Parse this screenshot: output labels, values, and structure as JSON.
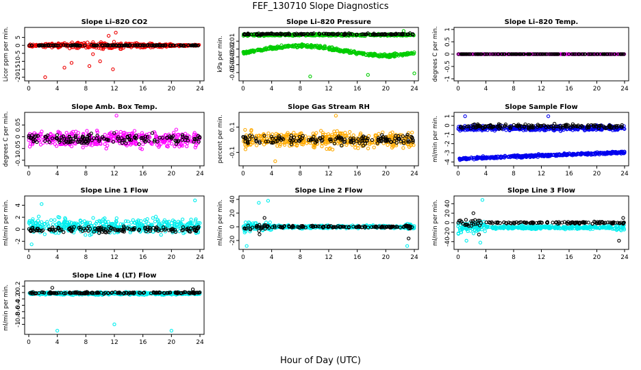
{
  "figure": {
    "title": "FEF_130710  Slope Diagnostics",
    "xlabel": "Hour of Day (UTC)"
  },
  "chart_data": [
    {
      "type": "scatter",
      "title": "Slope Li–820 CO2",
      "ylabel": "Licor ppm per min.",
      "xlim": [
        0,
        24
      ],
      "xticks": [
        "0",
        "4",
        "8",
        "12",
        "16",
        "20",
        "24"
      ],
      "ylim": [
        -21,
        10
      ],
      "yticks": [
        -20,
        -15,
        -10,
        -5,
        0,
        5
      ],
      "grid": false,
      "series": [
        {
          "color": "#ee0000",
          "center": 0,
          "spread": 2.2,
          "mode": "cone",
          "out": [
            [
              2.3,
              -20
            ],
            [
              5,
              -14
            ],
            [
              6,
              -11
            ],
            [
              8.5,
              -13
            ],
            [
              9,
              -5.5
            ],
            [
              10,
              -10
            ],
            [
              11.2,
              6
            ],
            [
              11.8,
              -15
            ],
            [
              12.2,
              8
            ]
          ]
        },
        {
          "color": "#000000",
          "center": 0,
          "spread": 0.4,
          "mode": "flat",
          "out": []
        }
      ]
    },
    {
      "type": "scatter",
      "title": "Slope Li–820 Pressure",
      "ylabel": "kPa per min.",
      "xlim": [
        0,
        24
      ],
      "xticks": [
        "0",
        "4",
        "8",
        "12",
        "16",
        "20",
        "24"
      ],
      "ylim": [
        -0.058,
        0.005
      ],
      "yticks": [
        -0.05,
        -0.04,
        -0.03,
        -0.02,
        -0.01
      ],
      "grid": false,
      "series": [
        {
          "color": "#00cc00",
          "center": -0.002,
          "spread": 0.002,
          "mode": "flat",
          "out": [
            [
              9.4,
              -0.055
            ],
            [
              17.5,
              -0.053
            ],
            [
              24,
              -0.051
            ],
            [
              22.5,
              0.003
            ]
          ]
        },
        {
          "color": "#00cc00",
          "center": -0.022,
          "spread": 0.003,
          "mode": "band2",
          "out": []
        },
        {
          "color": "#000000",
          "center": -0.001,
          "spread": 0.0015,
          "mode": "flat",
          "out": []
        }
      ]
    },
    {
      "type": "scatter",
      "title": "Slope Li–820 Temp.",
      "ylabel": "degrees C per min.",
      "xlim": [
        0,
        24
      ],
      "xticks": [
        "0",
        "4",
        "8",
        "12",
        "16",
        "20",
        "24"
      ],
      "ylim": [
        -1,
        1
      ],
      "yticks": [
        -1.0,
        -0.5,
        0.0,
        0.5,
        1.0
      ],
      "grid": false,
      "series": [
        {
          "color": "#ff00ff",
          "center": 0,
          "spread": 0.0,
          "mode": "flat",
          "out": []
        },
        {
          "color": "#000000",
          "center": 0,
          "spread": 0.0,
          "mode": "flat",
          "out": []
        }
      ]
    },
    {
      "type": "scatter",
      "title": "Slope Amb. Box Temp.",
      "ylabel": "degrees C per min.",
      "xlim": [
        0,
        24
      ],
      "xticks": [
        "0",
        "4",
        "8",
        "12",
        "16",
        "20",
        "24"
      ],
      "ylim": [
        -0.115,
        0.095
      ],
      "yticks": [
        -0.1,
        -0.05,
        0.0,
        0.05
      ],
      "grid": false,
      "series": [
        {
          "color": "#ff00ff",
          "center": -0.01,
          "spread": 0.05,
          "mode": "flat",
          "out": [
            [
              12.3,
              0.09
            ]
          ]
        },
        {
          "color": "#000000",
          "center": -0.01,
          "spread": 0.03,
          "mode": "flat",
          "out": []
        }
      ]
    },
    {
      "type": "scatter",
      "title": "Slope Gas Stream RH",
      "ylabel": "percent per min.",
      "xlim": [
        0,
        24
      ],
      "xticks": [
        "0",
        "4",
        "8",
        "12",
        "16",
        "20",
        "24"
      ],
      "ylim": [
        -0.19,
        0.2
      ],
      "yticks": [
        -0.1,
        0.1
      ],
      "grid": false,
      "series": [
        {
          "color": "#ffaa00",
          "center": 0,
          "spread": 0.09,
          "mode": "flat",
          "out": [
            [
              13,
              0.19
            ],
            [
              4.5,
              -0.17
            ]
          ]
        },
        {
          "color": "#000000",
          "center": 0,
          "spread": 0.05,
          "mode": "flat",
          "out": []
        }
      ]
    },
    {
      "type": "scatter",
      "title": "Slope Sample Flow",
      "ylabel": "ml/min per min.",
      "xlim": [
        0,
        24
      ],
      "xticks": [
        "0",
        "4",
        "8",
        "12",
        "16",
        "20",
        "24"
      ],
      "ylim": [
        -4.2,
        1.2
      ],
      "yticks": [
        -4,
        -3,
        -2,
        -1,
        0,
        1
      ],
      "grid": false,
      "series": [
        {
          "color": "#0000ee",
          "center": -0.3,
          "spread": 0.4,
          "mode": "flat",
          "out": [
            [
              1,
              1
            ],
            [
              13,
              1
            ]
          ]
        },
        {
          "color": "#0000ee",
          "center": -3.3,
          "spread": 0.2,
          "mode": "lower",
          "out": []
        },
        {
          "color": "#000000",
          "center": -0.1,
          "spread": 0.35,
          "mode": "flat",
          "out": []
        }
      ]
    },
    {
      "type": "scatter",
      "title": "Slope Line 1 Flow",
      "ylabel": "ml/min per min.",
      "xlim": [
        0,
        24
      ],
      "xticks": [
        "0",
        "4",
        "8",
        "12",
        "16",
        "20",
        "24"
      ],
      "ylim": [
        -3,
        5.2
      ],
      "yticks": [
        -2,
        0,
        2,
        4
      ],
      "grid": false,
      "series": [
        {
          "color": "#00eeee",
          "center": 0.5,
          "spread": 1.8,
          "mode": "flat",
          "out": [
            [
              1.8,
              4.2
            ],
            [
              23.3,
              4.8
            ],
            [
              0.4,
              -2.5
            ]
          ]
        },
        {
          "color": "#000000",
          "center": 0,
          "spread": 0.7,
          "mode": "flat",
          "out": []
        }
      ]
    },
    {
      "type": "scatter",
      "title": "Slope Line 2 Flow",
      "ylabel": "ml/min per min.",
      "xlim": [
        0,
        24
      ],
      "xticks": [
        "0",
        "4",
        "8",
        "12",
        "16",
        "20",
        "24"
      ],
      "ylim": [
        -30,
        42
      ],
      "yticks": [
        -20,
        0,
        20,
        40
      ],
      "grid": false,
      "series": [
        {
          "color": "#00eeee",
          "center": 0,
          "spread": 3,
          "mode": "early",
          "out": [
            [
              2.2,
              35
            ],
            [
              3.5,
              38
            ],
            [
              0.5,
              -28
            ],
            [
              23,
              -28
            ]
          ]
        },
        {
          "color": "#000000",
          "center": 0,
          "spread": 2,
          "mode": "earlyk",
          "out": [
            [
              2.3,
              -11
            ],
            [
              3,
              13
            ],
            [
              23.2,
              -17
            ]
          ]
        }
      ]
    },
    {
      "type": "scatter",
      "title": "Slope Line 3 Flow",
      "ylabel": "ml/min per min.",
      "xlim": [
        0,
        24
      ],
      "xticks": [
        "0",
        "4",
        "8",
        "12",
        "16",
        "20",
        "24"
      ],
      "ylim": [
        -52,
        52
      ],
      "yticks": [
        -40,
        -20,
        0,
        20,
        40
      ],
      "grid": false,
      "series": [
        {
          "color": "#00eeee",
          "center": -10,
          "spread": 5,
          "mode": "early",
          "out": [
            [
              3.5,
              48
            ],
            [
              1.2,
              -38
            ],
            [
              3.2,
              -42
            ]
          ]
        },
        {
          "color": "#000000",
          "center": 0,
          "spread": 3,
          "mode": "earlyk",
          "out": [
            [
              2.2,
              20
            ],
            [
              3,
              -25
            ],
            [
              23.2,
              -38
            ],
            [
              23.8,
              10
            ]
          ]
        }
      ]
    },
    {
      "type": "scatter",
      "title": "Slope Line 4 (LT) Flow",
      "ylabel": "ml/min per min.",
      "xlim": [
        0,
        24
      ],
      "xticks": [
        "0",
        "4",
        "8",
        "12",
        "16",
        "20",
        "24"
      ],
      "ylim": [
        -1.25,
        0.3
      ],
      "yticks": [
        -1.0,
        -0.8,
        -0.6,
        -0.4,
        -0.2,
        0.0,
        0.2
      ],
      "grid": false,
      "series": [
        {
          "color": "#00eeee",
          "center": -0.03,
          "spread": 0.06,
          "mode": "flat",
          "out": [
            [
              4,
              -1.2
            ],
            [
              12,
              -1.0
            ],
            [
              20,
              -1.2
            ]
          ]
        },
        {
          "color": "#000000",
          "center": -0.01,
          "spread": 0.04,
          "mode": "flat",
          "out": [
            [
              3.3,
              0.15
            ],
            [
              23,
              0.1
            ]
          ]
        }
      ]
    }
  ]
}
